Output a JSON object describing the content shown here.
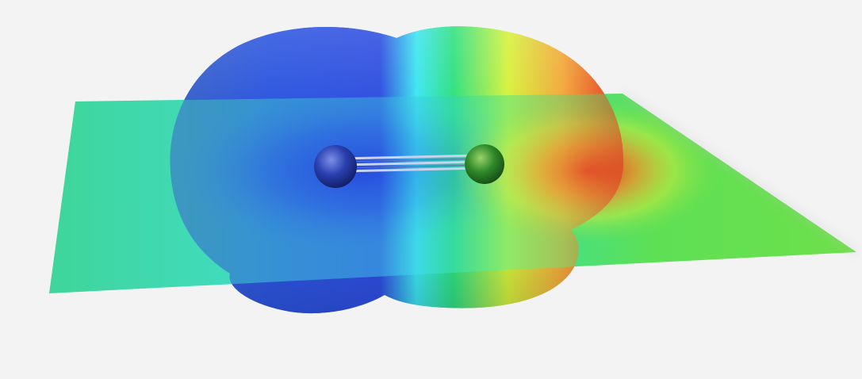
{
  "viewer": {
    "background_color": "#f3f3f3",
    "surface_type": "electrostatic-potential-isosurface",
    "plane_type": "potential-map-slice",
    "molecule": {
      "atoms": [
        {
          "name": "atom-left",
          "color": "#1f3fb0"
        },
        {
          "name": "atom-right",
          "color": "#1a7a1a"
        }
      ],
      "bond_order": 3
    },
    "color_scale": [
      "#1e3fd8",
      "#2a6be0",
      "#3ad8f0",
      "#22d26a",
      "#d8f23a",
      "#f07a1e",
      "#e0201e"
    ]
  }
}
